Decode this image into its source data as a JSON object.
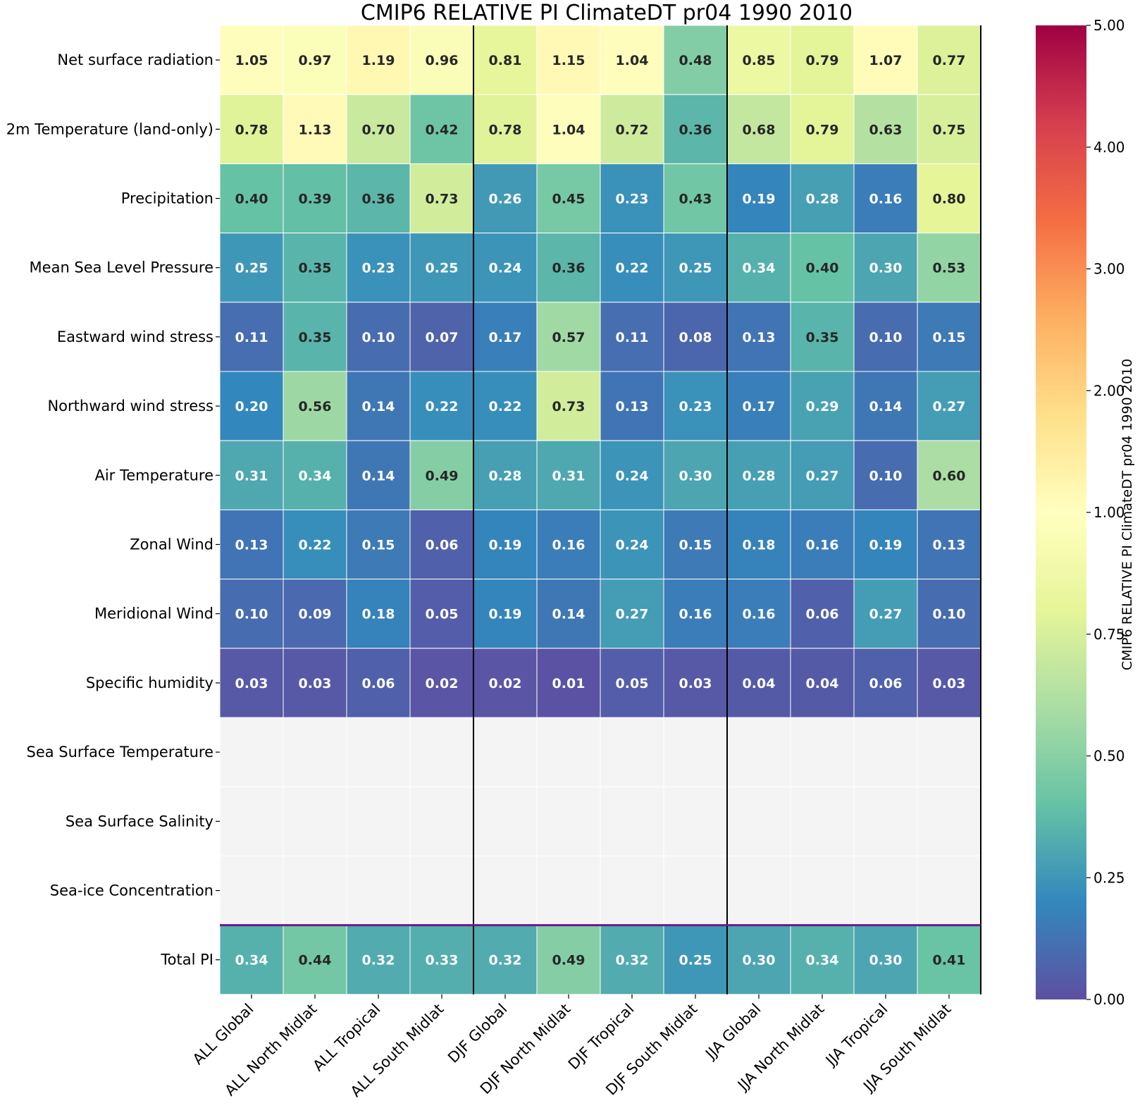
{
  "chart_data": {
    "type": "heatmap",
    "title": "CMIP6 RELATIVE PI ClimateDT pr04 1990 2010",
    "xlabel": "",
    "ylabel": "",
    "colorbar_label": "CMIP6 RELATIVE PI ClimateDT pr04 1990 2010",
    "colormap": "Spectral_r",
    "vmin": 0.0,
    "vmax": 5.0,
    "colorbar_ticks": [
      "0.00",
      "0.25",
      "0.50",
      "0.75",
      "1.00",
      "2.00",
      "3.00",
      "4.00",
      "5.00"
    ],
    "colorbar_tick_values": [
      0,
      0.25,
      0.5,
      0.75,
      1,
      2,
      3,
      4,
      5
    ],
    "x_categories": [
      "ALL Global",
      "ALL North Midlat",
      "ALL Tropical",
      "ALL South Midlat",
      "DJF Global",
      "DJF North Midlat",
      "DJF Tropical",
      "DJF South Midlat",
      "JJA Global",
      "JJA North Midlat",
      "JJA Tropical",
      "JJA South Midlat"
    ],
    "y_categories": [
      "Net surface radiation",
      "2m Temperature (land-only)",
      "Precipitation",
      "Mean Sea Level Pressure",
      "Eastward wind stress",
      "Northward wind stress",
      "Air Temperature",
      "Zonal Wind",
      "Meridional Wind",
      "Specific humidity",
      "Sea Surface Temperature",
      "Sea Surface Salinity",
      "Sea-ice Concentration",
      "Total PI"
    ],
    "values": [
      [
        1.05,
        0.97,
        1.19,
        0.96,
        0.81,
        1.15,
        1.04,
        0.48,
        0.85,
        0.79,
        1.07,
        0.77
      ],
      [
        0.78,
        1.13,
        0.7,
        0.42,
        0.78,
        1.04,
        0.72,
        0.36,
        0.68,
        0.79,
        0.63,
        0.75
      ],
      [
        0.4,
        0.39,
        0.36,
        0.73,
        0.26,
        0.45,
        0.23,
        0.43,
        0.19,
        0.28,
        0.16,
        0.8
      ],
      [
        0.25,
        0.35,
        0.23,
        0.25,
        0.24,
        0.36,
        0.22,
        0.25,
        0.34,
        0.4,
        0.3,
        0.53
      ],
      [
        0.11,
        0.35,
        0.1,
        0.07,
        0.17,
        0.57,
        0.11,
        0.08,
        0.13,
        0.35,
        0.1,
        0.15
      ],
      [
        0.2,
        0.56,
        0.14,
        0.22,
        0.22,
        0.73,
        0.13,
        0.23,
        0.17,
        0.29,
        0.14,
        0.27
      ],
      [
        0.31,
        0.34,
        0.14,
        0.49,
        0.28,
        0.31,
        0.24,
        0.3,
        0.28,
        0.27,
        0.1,
        0.6
      ],
      [
        0.13,
        0.22,
        0.15,
        0.06,
        0.19,
        0.16,
        0.24,
        0.15,
        0.18,
        0.16,
        0.19,
        0.13
      ],
      [
        0.1,
        0.09,
        0.18,
        0.05,
        0.19,
        0.14,
        0.27,
        0.16,
        0.16,
        0.06,
        0.27,
        0.1
      ],
      [
        0.03,
        0.03,
        0.06,
        0.02,
        0.02,
        0.01,
        0.05,
        0.03,
        0.04,
        0.04,
        0.06,
        0.03
      ],
      [
        null,
        null,
        null,
        null,
        null,
        null,
        null,
        null,
        null,
        null,
        null,
        null
      ],
      [
        null,
        null,
        null,
        null,
        null,
        null,
        null,
        null,
        null,
        null,
        null,
        null
      ],
      [
        null,
        null,
        null,
        null,
        null,
        null,
        null,
        null,
        null,
        null,
        null,
        null
      ],
      [
        0.34,
        0.44,
        0.32,
        0.33,
        0.32,
        0.49,
        0.32,
        0.25,
        0.3,
        0.34,
        0.3,
        0.41
      ]
    ],
    "value_format": "2 decimals",
    "separators": {
      "season_column_boundaries_after": [
        4,
        8
      ],
      "total_row_boundary_before": 13
    },
    "missing_color": "#f4f4f4",
    "total_separator_color": "#6a1b8a"
  }
}
